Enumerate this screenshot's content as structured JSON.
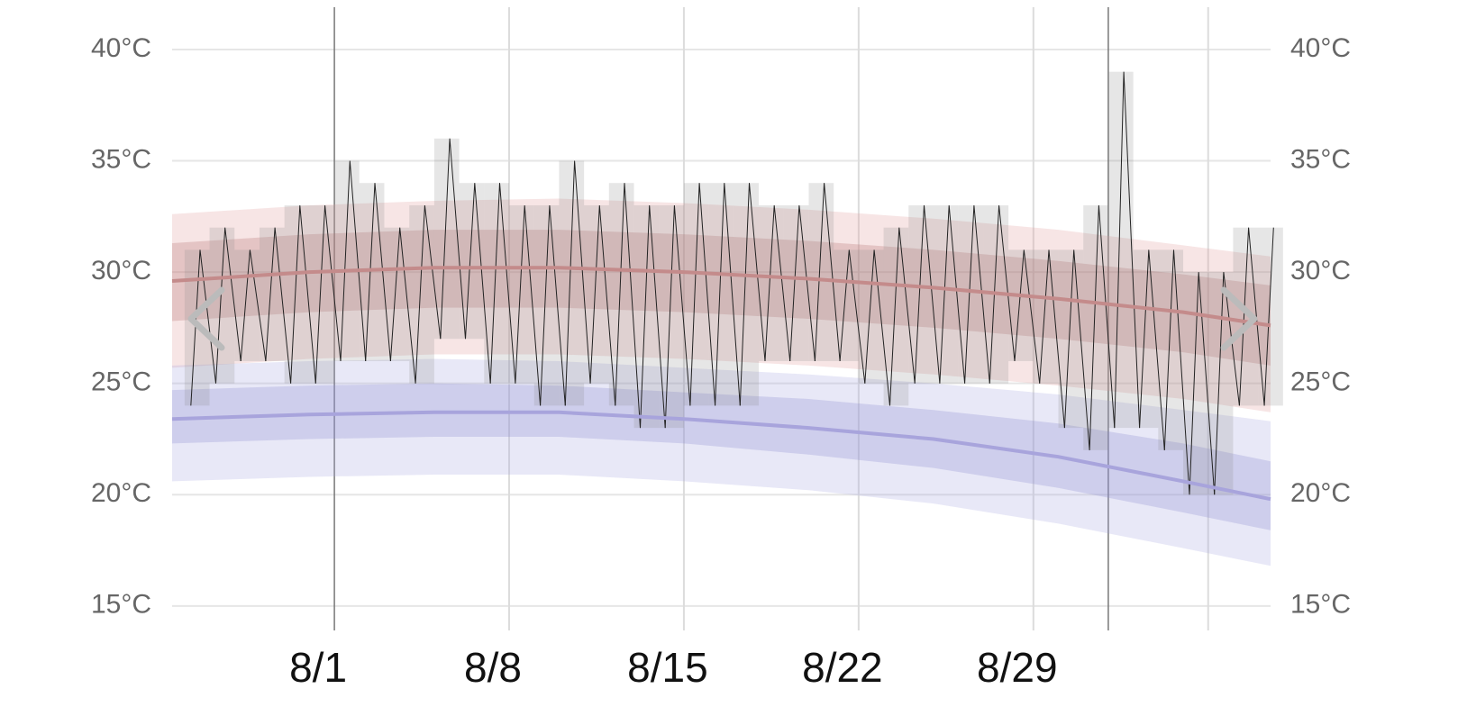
{
  "chart_data": {
    "type": "line",
    "xlim": [
      -5.5,
      38.5
    ],
    "ylim": [
      13.9,
      41.9
    ],
    "xticks": [
      {
        "value": 1,
        "label": "8/1"
      },
      {
        "value": 8,
        "label": "8/8"
      },
      {
        "value": 15,
        "label": "8/15"
      },
      {
        "value": 22,
        "label": "8/22"
      },
      {
        "value": 29,
        "label": "8/29"
      }
    ],
    "xgrid": [
      8,
      15,
      22,
      29,
      36
    ],
    "month_lines": [
      1,
      32
    ],
    "yticks": [
      {
        "value": 15,
        "label": "15°C"
      },
      {
        "value": 20,
        "label": "20°C"
      },
      {
        "value": 25,
        "label": "25°C"
      },
      {
        "value": 30,
        "label": "30°C"
      },
      {
        "value": 35,
        "label": "35°C"
      },
      {
        "value": 40,
        "label": "40°C"
      }
    ],
    "grid": true,
    "normals": {
      "x": [
        -5.5,
        0,
        5,
        10,
        15,
        20,
        25,
        30,
        35,
        38.5
      ],
      "series": [
        {
          "color": "#c48b8b",
          "band_colors": [
            "rgba(225,160,160,0.28)",
            "rgba(185,120,120,0.30)"
          ],
          "p10": [
            25.7,
            26.1,
            26.3,
            26.3,
            26.1,
            25.8,
            25.4,
            24.9,
            24.3,
            23.7
          ],
          "p25": [
            27.8,
            28.2,
            28.4,
            28.4,
            28.2,
            27.9,
            27.5,
            27.0,
            26.4,
            25.8
          ],
          "values": [
            29.6,
            30.0,
            30.2,
            30.2,
            30.0,
            29.7,
            29.3,
            28.8,
            28.2,
            27.6
          ],
          "p75": [
            31.3,
            31.7,
            31.9,
            31.9,
            31.7,
            31.4,
            31.0,
            30.5,
            29.9,
            29.4
          ],
          "p90": [
            32.6,
            33.0,
            33.2,
            33.3,
            33.1,
            32.8,
            32.4,
            31.9,
            31.2,
            30.7
          ]
        },
        {
          "color": "#a8a4dc",
          "band_colors": [
            "rgba(165,165,225,0.25)",
            "rgba(140,140,210,0.28)"
          ],
          "p10": [
            20.6,
            20.8,
            20.9,
            20.9,
            20.6,
            20.2,
            19.6,
            18.7,
            17.6,
            16.8
          ],
          "p25": [
            22.3,
            22.5,
            22.6,
            22.6,
            22.3,
            21.8,
            21.2,
            20.3,
            19.2,
            18.4
          ],
          "values": [
            23.4,
            23.6,
            23.7,
            23.7,
            23.4,
            23.0,
            22.5,
            21.7,
            20.6,
            19.8
          ],
          "p75": [
            24.7,
            24.9,
            25.0,
            24.9,
            24.6,
            24.3,
            23.8,
            23.2,
            22.3,
            21.5
          ],
          "p90": [
            25.8,
            26.0,
            26.1,
            26.0,
            25.7,
            25.4,
            25.0,
            24.5,
            23.8,
            23.3
          ]
        }
      ]
    },
    "observed": {
      "x": [
        -5,
        -4,
        -3,
        -2,
        -1,
        0,
        1,
        2,
        3,
        4,
        5,
        6,
        7,
        8,
        9,
        10,
        11,
        12,
        13,
        14,
        15,
        16,
        17,
        18,
        19,
        20,
        21,
        22,
        23,
        24,
        25,
        26,
        27,
        28,
        29,
        30,
        31,
        32,
        33,
        34,
        35,
        36,
        37,
        38
      ],
      "highs": [
        31,
        32,
        31,
        32,
        33,
        33,
        35,
        34,
        32,
        33,
        36,
        34,
        34,
        33,
        33,
        35,
        33,
        34,
        33,
        33,
        34,
        34,
        34,
        33,
        33,
        34,
        31,
        31,
        32,
        33,
        33,
        33,
        33,
        31,
        31,
        31,
        33,
        39,
        31,
        31,
        30,
        30,
        32,
        32
      ],
      "lows": [
        24,
        25,
        26,
        26,
        25,
        25,
        26,
        26,
        26,
        25,
        27,
        27,
        25,
        25,
        24,
        24,
        25,
        24,
        23,
        23,
        24,
        24,
        24,
        26,
        26,
        26,
        26,
        25,
        24,
        25,
        25,
        25,
        25,
        26,
        25,
        23,
        22,
        23,
        23,
        22,
        20,
        20,
        24,
        24
      ]
    }
  }
}
